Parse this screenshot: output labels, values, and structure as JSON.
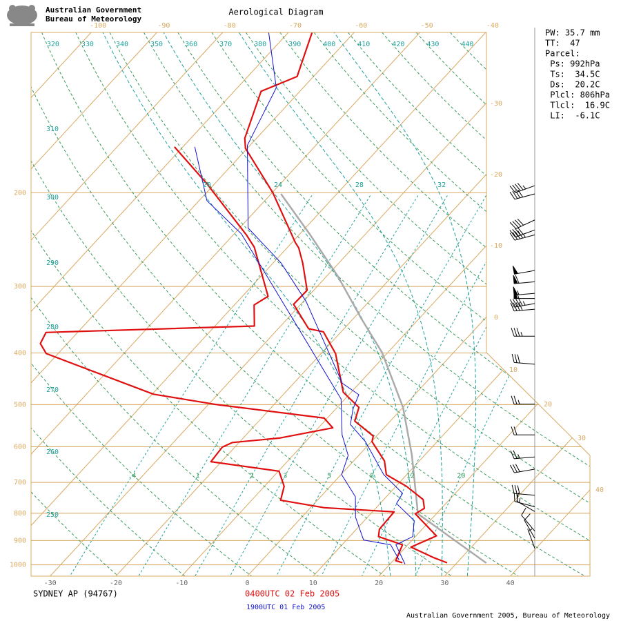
{
  "header": {
    "line1": "Australian Government",
    "line2": "Bureau of Meteorology"
  },
  "chart_data": {
    "type": "skew-t",
    "title": "Aerological Diagram",
    "station": "SYDNEY AP (94767)",
    "log_y": true,
    "ylim": [
      100,
      1050
    ],
    "yticks": [
      200,
      300,
      400,
      500,
      600,
      700,
      800,
      900,
      1000
    ],
    "xlim": [
      -32.9,
      52.1
    ],
    "xticks": [
      -30,
      -20,
      -10,
      0,
      10,
      20,
      30,
      40
    ],
    "top_ticks": [
      -100,
      -90,
      -80,
      -70,
      -60,
      -50,
      -40
    ],
    "right_ticks": [
      -30,
      -20,
      -10,
      0,
      10,
      20,
      30,
      40
    ],
    "dry_adiabats": [
      250,
      260,
      270,
      280,
      290,
      300,
      310,
      320,
      330,
      340,
      350,
      360,
      370,
      380,
      390,
      400,
      410,
      420,
      430,
      440
    ],
    "mixing_ratios": [
      {
        "value": 0.4,
        "label": ".4"
      },
      1,
      2,
      3,
      5,
      8,
      12,
      20
    ],
    "moist_adiabats": [
      20,
      24,
      28,
      32
    ],
    "series": [
      {
        "name": "0400UTC 02 Feb 2005",
        "color": "#e01010",
        "temperature": {
          "pressure": [
            991,
            968,
            926,
            882,
            802,
            783,
            754,
            712,
            677,
            638,
            587,
            573,
            537,
            506,
            474,
            401,
            365,
            360,
            324,
            305,
            271,
            254,
            248,
            200,
            165,
            158,
            129,
            121,
            100
          ],
          "values": [
            28.5,
            25.6,
            20.8,
            23.1,
            16.8,
            17.4,
            16.0,
            11.6,
            6.9,
            4.7,
            0.1,
            -0.5,
            -5.4,
            -6.7,
            -11.2,
            -17.8,
            -22.7,
            -25.4,
            -31.1,
            -31.0,
            -35.5,
            -38.2,
            -39.5,
            -49.9,
            -60.3,
            -61.8,
            -65.9,
            -62.5,
            -66.4
          ]
        },
        "dewpoint": {
          "pressure": [
            991,
            982,
            917,
            885,
            857,
            795,
            781,
            756,
            712,
            667,
            640,
            601,
            589,
            578,
            553,
            530,
            500,
            478,
            401,
            384,
            366,
            356,
            325,
            313,
            253,
            240,
            192,
            164
          ],
          "values": [
            21.7,
            20.4,
            19.2,
            14.4,
            13.5,
            13.3,
            2.1,
            -5.6,
            -7.0,
            -9.9,
            -21.6,
            -21.9,
            -21.0,
            -14.5,
            -7.8,
            -10.5,
            -28.7,
            -39.8,
            -61.8,
            -64.1,
            -64.8,
            -34.0,
            -37.0,
            -36.1,
            -45.1,
            -48.0,
            -61.3,
            -71.3
          ]
        }
      },
      {
        "name": "1900UTC 01 Feb 2005",
        "color": "#1010d0",
        "temperature": {
          "pressure": [
            997,
            917,
            885,
            826,
            767,
            734,
            677,
            587,
            545,
            509,
            479,
            456,
            399,
            320,
            271,
            233,
            163,
            127,
            100
          ],
          "values": [
            22.3,
            18.2,
            19.6,
            17.6,
            12.5,
            12.0,
            6.5,
            -0.9,
            -5.6,
            -7.4,
            -8.5,
            -12.6,
            -19.0,
            -29.6,
            -38.8,
            -48.7,
            -60.4,
            -64.1,
            -73.0
          ]
        },
        "dewpoint": {
          "pressure": [
            979,
            917,
            898,
            814,
            745,
            677,
            623,
            570,
            488,
            399,
            305,
            239,
            207,
            164
          ],
          "values": [
            20.8,
            17.4,
            12.6,
            8.2,
            5.3,
            0.1,
            -1.6,
            -5.4,
            -10.6,
            -21.4,
            -35.8,
            -48.9,
            -58.8,
            -68.2
          ]
        }
      }
    ],
    "parcel": {
      "color": "#aaaaaa",
      "pressure": [
        992,
        802,
        623,
        506,
        399,
        344,
        287,
        240,
        201
      ],
      "values": [
        34.5,
        17.2,
        8.1,
        0.0,
        -10.9,
        -18.9,
        -28.3,
        -38.3,
        -48.5
      ]
    },
    "winds": {
      "pressure": [
        194,
        201,
        225,
        235,
        240,
        280,
        294,
        309,
        316,
        323,
        331,
        372,
        420,
        499,
        570,
        627,
        661,
        740,
        778,
        794,
        864,
        891,
        931
      ],
      "speed": [
        45,
        40,
        40,
        40,
        45,
        50,
        60,
        55,
        55,
        45,
        40,
        35,
        30,
        25,
        20,
        25,
        30,
        30,
        20,
        15,
        10,
        10,
        5
      ],
      "direction": [
        250,
        255,
        245,
        250,
        255,
        260,
        265,
        265,
        270,
        260,
        265,
        270,
        275,
        270,
        270,
        265,
        260,
        275,
        285,
        300,
        320,
        330,
        340
      ]
    },
    "info": [
      "PW: 35.7 mm",
      "TT:  47",
      "Parcel:",
      " Ps: 992hPa",
      " Ts:  34.5C",
      " Ds:  20.2C",
      " Plcl: 806hPa",
      " Tlcl:  16.9C",
      " LI:  -6.1C"
    ]
  },
  "footer": "Australian Government 2005, Bureau of Meteorology"
}
